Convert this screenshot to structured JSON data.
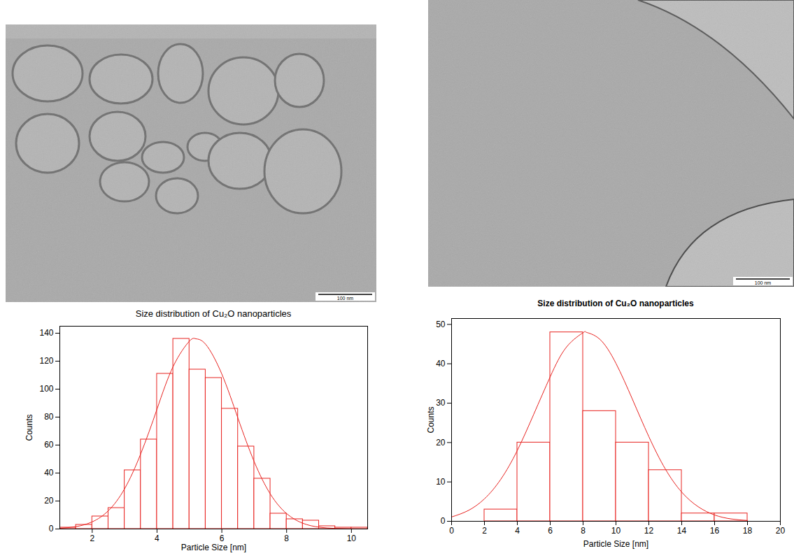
{
  "chart_data": [
    {
      "type": "histogram",
      "title": "Size distribution of Cu₂O nanoparticles",
      "x_label": "Particle Size [nm]",
      "y_label": "Counts",
      "bins": [
        1,
        1.5,
        2,
        2.5,
        3,
        3.5,
        4,
        4.5,
        5,
        5.5,
        6,
        6.5,
        7,
        7.5,
        8,
        8.5,
        9,
        9.5,
        10,
        10.5
      ],
      "values": [
        1,
        3,
        9,
        15,
        42,
        64,
        111,
        136,
        114,
        108,
        86,
        59,
        36,
        11,
        7,
        6,
        2,
        1,
        1
      ],
      "color": "#e8221f",
      "xlim": [
        1,
        10.5
      ],
      "xticks": [
        2,
        4,
        6,
        8,
        10
      ],
      "ylim": [
        0,
        145
      ],
      "yticks": [
        0,
        20,
        40,
        60,
        80,
        100,
        120,
        140
      ],
      "fit_curve": {
        "type": "line",
        "x": [
          1,
          1.5,
          2,
          2.5,
          3,
          3.5,
          4,
          4.5,
          5,
          5.2,
          5.5,
          6,
          6.5,
          7,
          7.5,
          8,
          8.5,
          9,
          9.5,
          10,
          10.5
        ],
        "values": [
          0.5,
          1.7,
          5.1,
          13.1,
          28.8,
          53.9,
          85.7,
          116.3,
          134.3,
          136,
          132.1,
          110.8,
          79.1,
          48.1,
          24.9,
          11,
          4.1,
          1.3,
          0.4,
          0.1,
          0
        ]
      }
    },
    {
      "type": "histogram",
      "title": "Size distribution of Cu₂O nanoparticles",
      "x_label": "Particle Size [nm]",
      "y_label": "Counts",
      "bins": [
        2,
        4,
        6,
        8,
        10,
        12,
        14,
        16,
        18
      ],
      "values": [
        3,
        20,
        48,
        28,
        20,
        13,
        2,
        2
      ],
      "color": "#e8221f",
      "xlim": [
        0,
        20
      ],
      "xticks": [
        0,
        2,
        4,
        6,
        8,
        10,
        12,
        14,
        16,
        18,
        20
      ],
      "ylim": [
        0,
        51.5
      ],
      "yticks": [
        0,
        10,
        20,
        30,
        40,
        50
      ],
      "fit_curve": {
        "type": "line",
        "x": [
          0,
          1,
          2,
          3,
          4,
          5,
          6,
          7,
          8,
          8.2,
          9,
          10,
          11,
          12,
          13,
          14,
          15,
          16,
          17,
          18
        ],
        "values": [
          1.1,
          2.7,
          5.7,
          10.7,
          18,
          27.2,
          36.7,
          44.3,
          47.9,
          48,
          46.3,
          40.1,
          31,
          21.5,
          13.3,
          7.4,
          3.7,
          1.6,
          0.6,
          0.2
        ]
      }
    }
  ],
  "micrographs": [
    {
      "scale_bar": "100 nm"
    },
    {
      "scale_bar": "100 nm"
    }
  ]
}
